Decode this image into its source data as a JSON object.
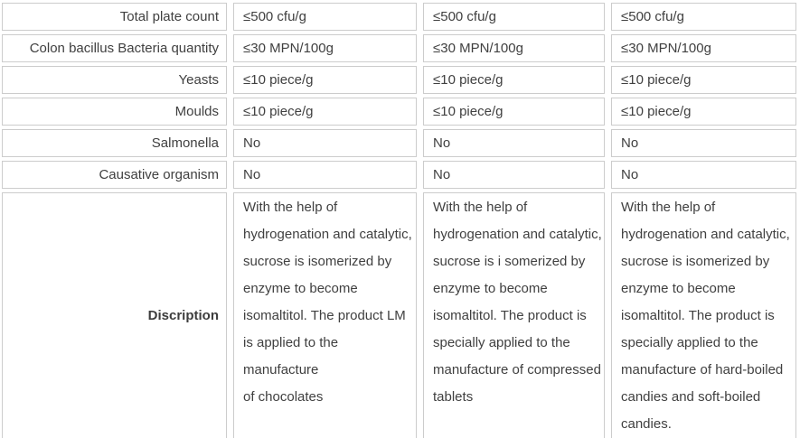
{
  "table": {
    "rows": [
      {
        "label": "Total plate count",
        "values": [
          "≤500 cfu/g",
          "≤500 cfu/g",
          "≤500 cfu/g"
        ]
      },
      {
        "label": "Colon bacillus Bacteria quantity",
        "values": [
          "≤30 MPN/100g",
          "≤30 MPN/100g",
          "≤30 MPN/100g"
        ]
      },
      {
        "label": "Yeasts",
        "values": [
          "≤10 piece/g",
          "≤10 piece/g",
          "≤10 piece/g"
        ]
      },
      {
        "label": "Moulds",
        "values": [
          "≤10 piece/g",
          "≤10 piece/g",
          "≤10 piece/g"
        ]
      },
      {
        "label": "Salmonella",
        "values": [
          "No",
          "No",
          "No"
        ]
      },
      {
        "label": "Causative organism",
        "values": [
          "No",
          "No",
          "No"
        ]
      },
      {
        "label": "Discription",
        "values": [
          [
            "With the help of",
            "hydrogenation and catalytic,",
            "sucrose is isomerized by",
            "enzyme to become",
            "isomaltitol. The product LM",
            "is applied to the manufacture",
            "of chocolates"
          ],
          [
            "With the help of",
            "hydrogenation and catalytic,",
            "sucrose is i somerized by",
            "enzyme to become",
            "isomaltitol. The product is",
            "specially applied to the",
            "manufacture of compressed",
            "tablets"
          ],
          [
            "With the help of",
            "hydrogenation and catalytic,",
            "sucrose is isomerized by",
            "enzyme to become",
            "isomaltitol. The product is",
            "specially applied to the",
            "manufacture of hard-boiled",
            "candies and soft-boiled",
            "candies."
          ]
        ]
      }
    ]
  },
  "colors": {
    "cell_border": "#cccccc",
    "text": "#404040",
    "background": "#ffffff"
  }
}
